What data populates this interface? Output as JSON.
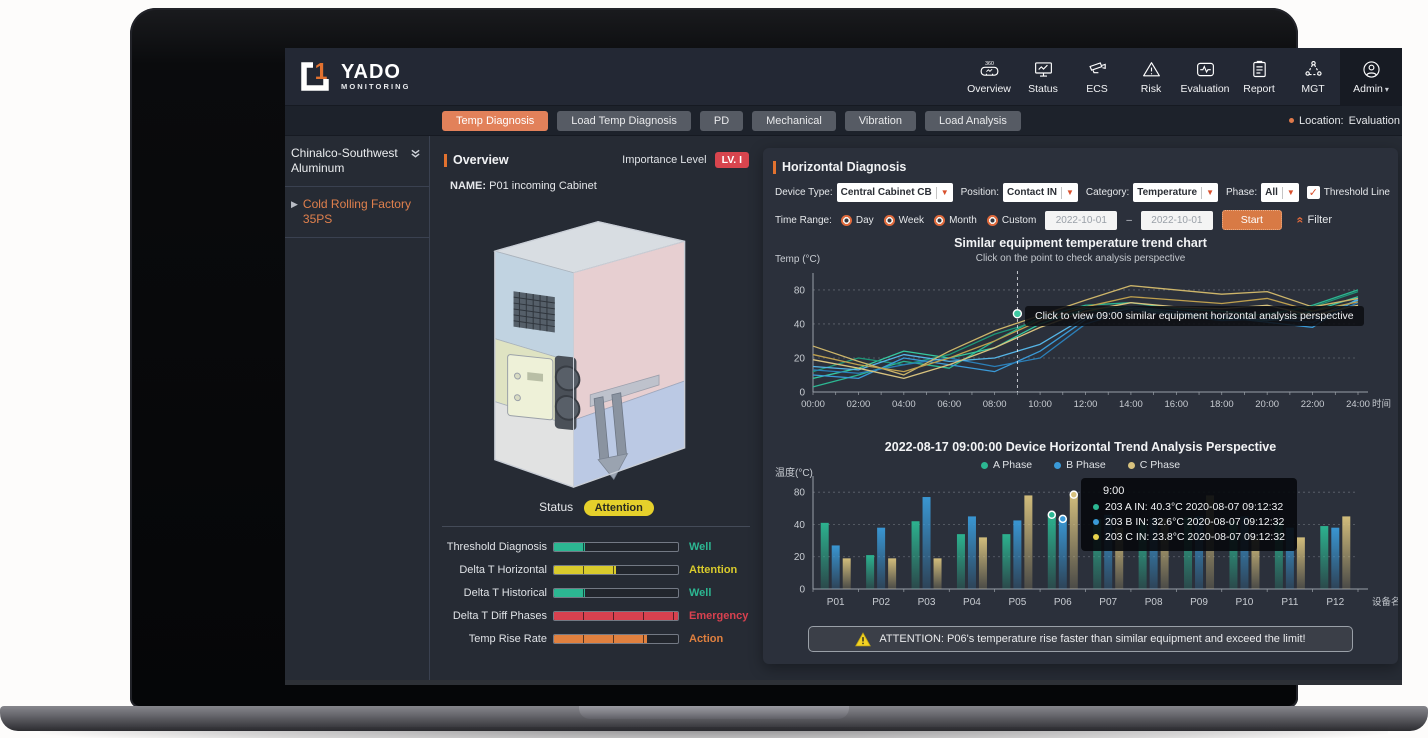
{
  "header": {
    "brand": {
      "name": "YADO",
      "sub": "MONITORING"
    },
    "nav": [
      {
        "label": "Overview",
        "icon": "vr-360-icon"
      },
      {
        "label": "Status",
        "icon": "monitor-chart-icon"
      },
      {
        "label": "ECS",
        "icon": "cctv-camera-icon"
      },
      {
        "label": "Risk",
        "icon": "warning-triangle-icon"
      },
      {
        "label": "Evaluation",
        "icon": "pulse-icon"
      },
      {
        "label": "Report",
        "icon": "clipboard-icon"
      },
      {
        "label": "MGT",
        "icon": "network-nodes-icon"
      },
      {
        "label": "Admin",
        "icon": "user-circle-icon",
        "active": true,
        "caret": "▾"
      }
    ]
  },
  "tabs": {
    "items": [
      {
        "label": "Temp Diagnosis",
        "active": true
      },
      {
        "label": "Load Temp Diagnosis"
      },
      {
        "label": "PD"
      },
      {
        "label": "Mechanical"
      },
      {
        "label": "Vibration"
      },
      {
        "label": "Load Analysis"
      }
    ],
    "location_label": "Location:",
    "location_value": "Evaluation"
  },
  "sidebar": {
    "company": "Chinalco-Southwest Aluminum",
    "factory": "Cold Rolling Factory 35PS"
  },
  "overview": {
    "title": "Overview",
    "importance_label": "Importance Level",
    "importance_value": "LV. I",
    "name_label": "NAME:",
    "name_value": "P01 incoming Cabinet",
    "status_label": "Status",
    "status_value": "Attention",
    "metrics": [
      {
        "label": "Threshold Diagnosis",
        "segments": 1,
        "color": "#2cb792",
        "status": "Well"
      },
      {
        "label": "Delta T Horizontal",
        "segments": 2,
        "color": "#d9cb2c",
        "status": "Attention"
      },
      {
        "label": "Delta T Historical",
        "segments": 1,
        "color": "#2cb792",
        "status": "Well"
      },
      {
        "label": "Delta T Diff Phases",
        "segments": 4,
        "color": "#d8414f",
        "status": "Emergency"
      },
      {
        "label": "Temp Rise Rate",
        "segments": 3,
        "color": "#e0803f",
        "status": "Action"
      }
    ]
  },
  "diagnosis": {
    "title": "Horizontal Diagnosis",
    "selects": [
      {
        "name": "device-type",
        "label": "Device Type:",
        "value": "Central Cabinet CB"
      },
      {
        "name": "position",
        "label": "Position:",
        "value": "Contact IN"
      },
      {
        "name": "category",
        "label": "Category:",
        "value": "Temperature"
      },
      {
        "name": "phase",
        "label": "Phase:",
        "value": "All"
      }
    ],
    "threshold_checkbox": {
      "label": "Threshold Line",
      "checked": true,
      "check_glyph": "✓"
    },
    "time": {
      "label": "Time Range:",
      "options": [
        {
          "label": "Day",
          "selected": true
        },
        {
          "label": "Week"
        },
        {
          "label": "Month"
        },
        {
          "label": "Custom"
        }
      ],
      "date_from": "2022-10-01",
      "separator": "–",
      "date_to": "2022-10-01",
      "start_label": "Start",
      "filter_label": "Filter"
    }
  },
  "chart_data": [
    {
      "type": "line",
      "title": "Similar equipment temperature trend chart",
      "subtitle": "Click on the point to check analysis perspective",
      "ylabel": "Temp (°C)",
      "xlabel": "时间",
      "x": [
        "00:00",
        "02:00",
        "04:00",
        "06:00",
        "08:00",
        "10:00",
        "12:00",
        "14:00",
        "16:00",
        "18:00",
        "20:00",
        "22:00",
        "24:00"
      ],
      "yticks": [
        0,
        20,
        40,
        80
      ],
      "grid": true,
      "legend_position": "none",
      "series": [
        {
          "name": "similar-equipment-1",
          "color": "#2cb792",
          "values": [
            3,
            10,
            18,
            14,
            30,
            48,
            62,
            65,
            58,
            55,
            50,
            62,
            80
          ]
        },
        {
          "name": "similar-equipment-2",
          "color": "#35c9a0",
          "values": [
            8,
            14,
            24,
            20,
            26,
            40,
            58,
            60,
            52,
            48,
            44,
            55,
            72
          ]
        },
        {
          "name": "similar-equipment-3",
          "color": "#1e9678",
          "values": [
            12,
            20,
            16,
            22,
            34,
            44,
            55,
            58,
            50,
            45,
            52,
            60,
            78
          ]
        },
        {
          "name": "similar-equipment-4",
          "color": "#3a9ad8",
          "values": [
            10,
            8,
            20,
            16,
            12,
            24,
            45,
            60,
            55,
            48,
            42,
            38,
            70
          ]
        },
        {
          "name": "similar-equipment-5",
          "color": "#2b7fb8",
          "values": [
            13,
            11,
            16,
            20,
            15,
            20,
            40,
            56,
            50,
            44,
            46,
            42,
            65
          ]
        },
        {
          "name": "similar-equipment-6",
          "color": "#55b4e6",
          "values": [
            15,
            13,
            22,
            18,
            20,
            28,
            48,
            58,
            52,
            50,
            44,
            48,
            68
          ]
        },
        {
          "name": "similar-equipment-7",
          "color": "#cdb56a",
          "values": [
            27,
            18,
            10,
            24,
            36,
            50,
            68,
            85,
            80,
            75,
            78,
            60,
            70
          ]
        },
        {
          "name": "similar-equipment-8",
          "color": "#bfa04e",
          "values": [
            22,
            16,
            12,
            20,
            30,
            44,
            60,
            72,
            68,
            64,
            70,
            55,
            66
          ]
        },
        {
          "name": "similar-equipment-9",
          "color": "#d8c27e",
          "values": [
            19,
            14,
            8,
            16,
            26,
            38,
            55,
            65,
            60,
            58,
            62,
            50,
            62
          ]
        }
      ],
      "marker": {
        "x_hours": 9,
        "x_label": "09:00",
        "value": 52,
        "color": "#3ec9a2",
        "tooltip": "Click to view 09:00 similar equipment horizontal analysis perspective"
      }
    },
    {
      "type": "bar",
      "title": "2022-08-17 09:00:00  Device Horizontal Trend Analysis Perspective",
      "ylabel": "温度(°C)",
      "xlabel": "设备名",
      "categories": [
        "P01",
        "P02",
        "P03",
        "P04",
        "P05",
        "P06",
        "P07",
        "P08",
        "P09",
        "P10",
        "P11",
        "P12"
      ],
      "yticks": [
        0,
        20,
        40,
        80
      ],
      "grid": true,
      "legend_position": "top",
      "highlight_category": "P06",
      "series": [
        {
          "name": "A Phase",
          "color": "#2cb792",
          "values": [
            42,
            21,
            44,
            34,
            34,
            52,
            47,
            42,
            49,
            44,
            43,
            39
          ]
        },
        {
          "name": "B Phase",
          "color": "#3a9ad8",
          "values": [
            27,
            38,
            74,
            50,
            45,
            47,
            52,
            48,
            50,
            50,
            38,
            38
          ]
        },
        {
          "name": "C Phase",
          "color": "#d8c27e",
          "values": [
            19,
            19,
            19,
            32,
            76,
            77,
            38,
            48,
            76,
            32,
            32,
            50
          ]
        }
      ],
      "tooltip": {
        "title": "9:00",
        "rows": [
          {
            "color": "#2cb792",
            "text": "203 A IN:  40.3°C  2020-08-07  09:12:32"
          },
          {
            "color": "#3a9ad8",
            "text": "203 B IN:  32.6°C  2020-08-07  09:12:32"
          },
          {
            "color": "#e8d34d",
            "text": "203 C IN:  23.8°C  2020-08-07  09:12:32"
          }
        ]
      }
    }
  ],
  "attention": {
    "text": "ATTENTION: P06's temperature rise faster than similar equipment and exceed the limit!"
  }
}
